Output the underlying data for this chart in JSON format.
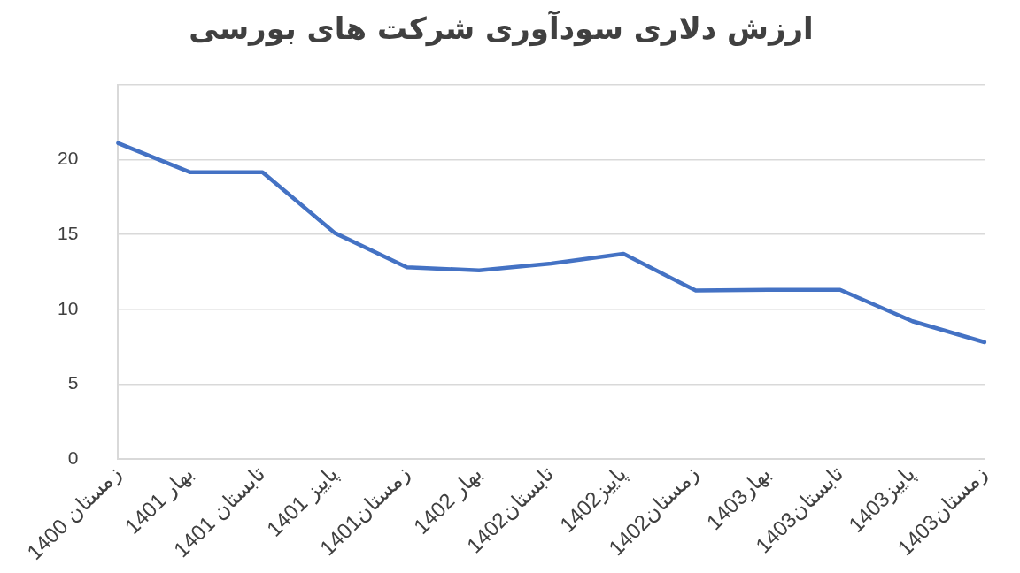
{
  "chart_data": {
    "type": "line",
    "title": "ارزش دلاری سودآوری شرکت های بورسی",
    "categories": [
      "زمستان 1400",
      "بهار 1401",
      "تابستان 1401",
      "پاییز 1401",
      "زمستان1401",
      "بهار 1402",
      "تابستان1402",
      "پاییز1402",
      "زمستان1402",
      "بهار1403",
      "تابستان1403",
      "پاییز1403",
      "زمستان1403"
    ],
    "series": [
      {
        "color": "#4472c4",
        "values": [
          21.1,
          19.15,
          19.15,
          15.1,
          12.8,
          12.6,
          13.05,
          13.7,
          11.25,
          11.3,
          11.3,
          9.2,
          7.8
        ]
      }
    ],
    "ylim": [
      0,
      25
    ],
    "yticks": [
      0,
      5,
      10,
      15,
      20,
      {
        "value": 25,
        "label": null
      }
    ],
    "grid": "y",
    "legend": false,
    "marker": "none"
  }
}
